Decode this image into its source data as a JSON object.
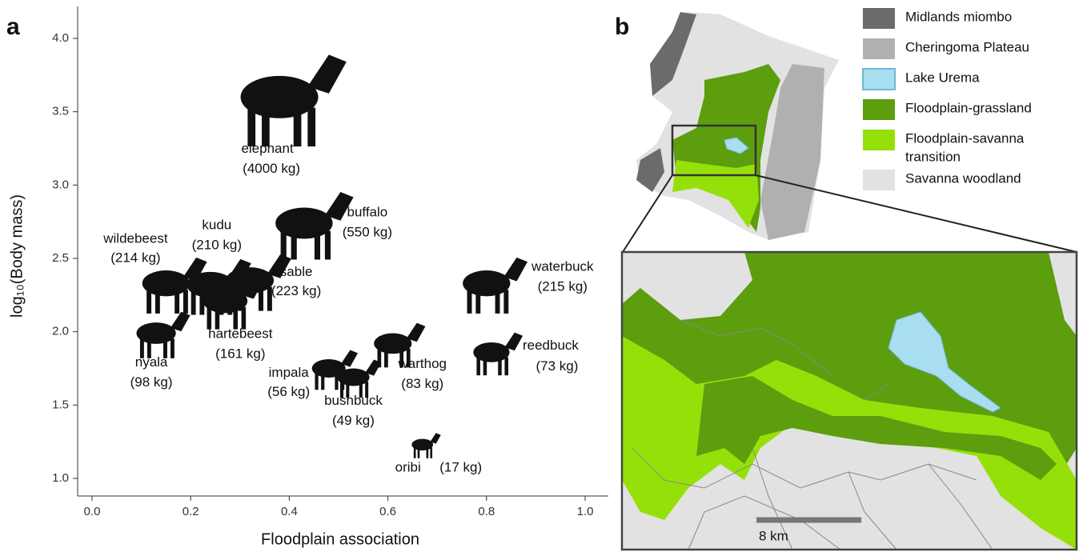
{
  "chart_data": {
    "type": "scatter",
    "panel": "a",
    "xlabel": "Floodplain association",
    "ylabel": "log₁₀(Body mass)",
    "xlim": [
      -0.02,
      1.02
    ],
    "ylim": [
      0.9,
      4.2
    ],
    "xticks": [
      {
        "value": 0,
        "label": "0.0"
      },
      {
        "value": 0.2,
        "label": "0.2"
      },
      {
        "value": 0.4,
        "label": "0.4"
      },
      {
        "value": 0.6,
        "label": "0.6"
      },
      {
        "value": 0.8,
        "label": "0.8"
      },
      {
        "value": 1,
        "label": "1.0"
      }
    ],
    "yticks": [
      {
        "value": 1,
        "label": "1.0"
      },
      1.5,
      {
        "value": 2,
        "label": "2.0"
      },
      2.5,
      {
        "value": 3,
        "label": "3.0"
      },
      3.5,
      {
        "value": 4,
        "label": "4.0"
      }
    ],
    "color": "#111111",
    "names": [
      "elephant",
      "buffalo",
      "wildebeest",
      "kudu",
      "sable",
      "hartebeest",
      "nyala",
      "impala",
      "bushbuck",
      "warthog",
      "oribi",
      "waterbuck",
      "reedbuck"
    ],
    "mass_labels": [
      "(4000 kg)",
      "(550 kg)",
      "(214 kg)",
      "(210 kg)",
      "(223 kg)",
      "(161 kg)",
      "(98 kg)",
      "(56 kg)",
      "(49 kg)",
      "(83 kg)",
      "(17 kg)",
      "(215 kg)",
      "(73 kg)"
    ],
    "x": [
      0.38,
      0.43,
      0.15,
      0.24,
      0.32,
      0.27,
      0.13,
      0.48,
      0.53,
      0.61,
      0.67,
      0.8,
      0.81
    ],
    "values": [
      3.6,
      2.74,
      2.33,
      2.32,
      2.35,
      2.21,
      1.99,
      1.75,
      1.69,
      1.92,
      1.23,
      2.33,
      1.86
    ]
  },
  "map": {
    "panel": "b",
    "scale_label": "8 km",
    "legend": [
      {
        "label": [
          "Midlands miombo"
        ],
        "color": "#6b6b6b"
      },
      {
        "label": [
          "Cheringoma Plateau"
        ],
        "color": "#b0b0b0"
      },
      {
        "label": [
          "Lake Urema"
        ],
        "color": "#a8def0"
      },
      {
        "label": [
          "Floodplain-grassland"
        ],
        "color": "#5c9e0e"
      },
      {
        "label": [
          "Floodplain-savanna",
          "transition"
        ],
        "color": "#96e00a"
      },
      {
        "label": [
          "Savanna woodland"
        ],
        "color": "#e2e2e2"
      }
    ]
  }
}
